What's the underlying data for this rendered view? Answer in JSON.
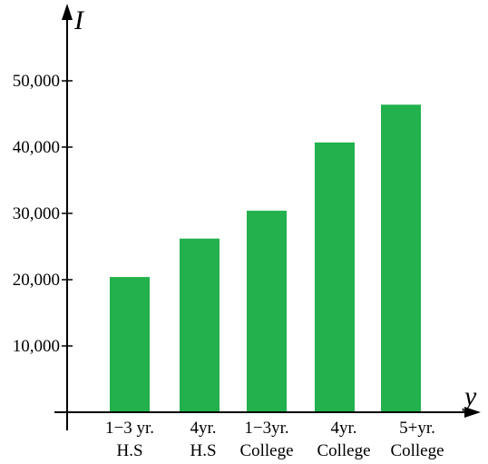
{
  "chart_data": {
    "type": "bar",
    "ylabel": "I",
    "xlabel": "y",
    "categories": [
      [
        "1−3 yr.",
        "H.S"
      ],
      [
        "4yr.",
        "H.S"
      ],
      [
        "1−3yr.",
        "College"
      ],
      [
        "4yr.",
        "College"
      ],
      [
        "5+yr.",
        "College"
      ]
    ],
    "values": [
      20400,
      26200,
      30400,
      40700,
      46400
    ],
    "yticks": [
      10000,
      20000,
      30000,
      40000,
      50000
    ],
    "ytick_labels": [
      "10,000",
      "20,000",
      "30,000",
      "40,000",
      "50,000"
    ],
    "ylim": [
      0,
      60000
    ],
    "bar_color": "#22b14c",
    "grid": false,
    "legend": "none"
  }
}
